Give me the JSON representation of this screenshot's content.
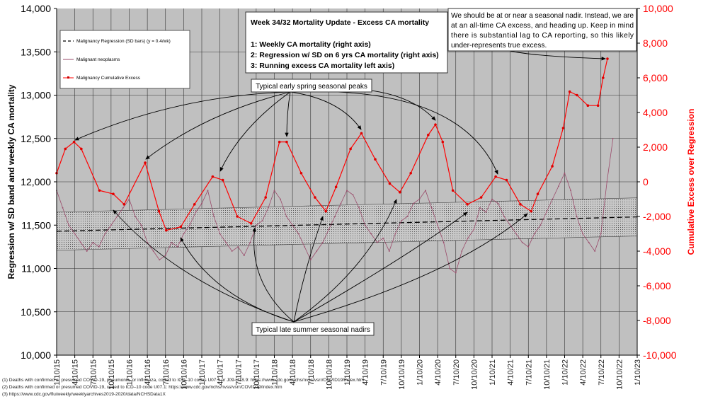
{
  "chart_data": {
    "type": "line",
    "title": "Week 34/32 Mortality Update - Excess CA mortality",
    "title_lines": [
      "1: Weekly CA mortality (right axis)",
      "2: Regression w/ SD on 6 yrs CA mortality (right axis)",
      "3: Running excess CA mortality left axis)"
    ],
    "ylabel_left": "Regression w/ SD band and weekly CA mortality",
    "ylabel_right": "Cumulative Excess over Regression",
    "ylim_left": [
      10000,
      14000
    ],
    "ylim_right": [
      -10000,
      10000
    ],
    "yticks_left": [
      "10,000",
      "10,500",
      "11,000",
      "11,500",
      "12,000",
      "12,500",
      "13,000",
      "13,500",
      "14,000"
    ],
    "yticks_right": [
      "-10,000",
      "-8,000",
      "-6,000",
      "-4,000",
      "-2,000",
      "0",
      "2,000",
      "4,000",
      "6,000",
      "8,000",
      "10,000"
    ],
    "xlim_years": [
      2015.03,
      2023.03
    ],
    "xticks": [
      "1/10/15",
      "4/10/15",
      "7/10/15",
      "10/10/15",
      "1/10/16",
      "4/10/16",
      "7/10/16",
      "10/10/16",
      "1/10/17",
      "4/10/17",
      "7/10/17",
      "10/10/17",
      "1/10/18",
      "4/10/18",
      "7/10/18",
      "10/10/18",
      "1/10/19",
      "4/10/19",
      "7/10/19",
      "10/10/19",
      "1/10/20",
      "4/10/20",
      "7/10/20",
      "10/10/20",
      "1/10/21",
      "4/10/21",
      "7/10/21",
      "10/10/21",
      "1/10/22",
      "4/10/22",
      "7/10/22",
      "10/10/22",
      "1/10/23"
    ],
    "grid": true,
    "legend_placement": "top-left",
    "legend": [
      "Malignancy Regression (SD bars) (y = 0.4/wk)",
      "Malignant neoplasms",
      "Malignancy Cumulative Excess"
    ],
    "series": [
      {
        "name": "Malignancy Regression (SD bars) (y = 0.4/wk)",
        "axis": "left",
        "color": "#000000",
        "x": [
          2015.03,
          2022.95
        ],
        "y": [
          11430,
          11595
        ],
        "sd": 220
      },
      {
        "name": "Malignant neoplasms",
        "axis": "left",
        "color": "#9a4a6a",
        "x_start": 2015.03,
        "x_step": 0.08333,
        "y": [
          11900,
          11700,
          11500,
          11400,
          11300,
          11200,
          11300,
          11250,
          11400,
          11500,
          11600,
          11700,
          11800,
          11600,
          11500,
          11300,
          11200,
          11100,
          11150,
          11300,
          11250,
          11400,
          11500,
          11650,
          11750,
          11900,
          11600,
          11400,
          11300,
          11200,
          11250,
          11150,
          11300,
          11500,
          11550,
          11700,
          11900,
          11800,
          11600,
          11500,
          11400,
          11250,
          11100,
          11200,
          11300,
          11450,
          11600,
          11750,
          11900,
          11850,
          11700,
          11500,
          11400,
          11300,
          11350,
          11200,
          11400,
          11550,
          11600,
          11750,
          11800,
          11900,
          11700,
          11500,
          11300,
          11000,
          10950,
          11200,
          11350,
          11450,
          11700,
          11650,
          11800,
          11750,
          11600,
          11500,
          11400,
          11300,
          11250,
          11400,
          11500,
          11650,
          11800,
          11950,
          12100,
          11900,
          11600,
          11400,
          11300,
          11200,
          11400,
          12000,
          12500
        ]
      },
      {
        "name": "Malignancy Cumulative Excess",
        "axis": "right",
        "color": "#ff0000",
        "x": [
          2015.03,
          2015.15,
          2015.27,
          2015.37,
          2015.62,
          2015.81,
          2015.96,
          2016.25,
          2016.44,
          2016.54,
          2016.74,
          2016.93,
          2017.18,
          2017.32,
          2017.52,
          2017.71,
          2017.91,
          2018.1,
          2018.2,
          2018.4,
          2018.59,
          2018.74,
          2018.88,
          2019.08,
          2019.23,
          2019.42,
          2019.62,
          2019.76,
          2019.91,
          2020.15,
          2020.25,
          2020.35,
          2020.49,
          2020.69,
          2020.88,
          2021.08,
          2021.23,
          2021.42,
          2021.57,
          2021.66,
          2021.86,
          2022.01,
          2022.1,
          2022.2,
          2022.35,
          2022.49,
          2022.56,
          2022.62
        ],
        "y": [
          500,
          1900,
          2300,
          1900,
          -500,
          -700,
          -1300,
          1100,
          -1700,
          -2800,
          -2600,
          -1300,
          300,
          100,
          -2000,
          -2400,
          -900,
          2300,
          2300,
          500,
          -900,
          -1700,
          -300,
          1900,
          2800,
          1300,
          -100,
          -600,
          500,
          2700,
          3300,
          2300,
          -500,
          -1300,
          -900,
          300,
          100,
          -1300,
          -1700,
          -700,
          900,
          3100,
          5200,
          5000,
          4400,
          4400,
          6000,
          7100
        ]
      }
    ],
    "annotations": {
      "peaks": "Typical early spring seasonal peaks",
      "nadirs": "Typical late summer seasonal nadirs",
      "note": [
        "We should be at or near a seasonal nadir. Instead, we are",
        "at an all-time CA excess, and heading up. Keep in mind",
        "there is substantial lag to CA reporting, so this likely",
        "under-represents true excess."
      ]
    }
  },
  "footnotes": [
    "(1) Deaths with confirmed or presumed COVID-19, pneumonia, or influenza, coded to ICD–10 codes U07.1 or J09–J18.9: https://www.cdc.gov/nchs/nvss/vsrr/COVID19/index.htm",
    "(2) Deaths with confirmed or presumed COVID-19, coded to ICD–10 code U07.1: https://www.cdc.gov/nchs/nvss/vsrr/COVID19/index.htm",
    "(3) https://www.cdc.gov/flu/weekly/weeklyarchives2019-2020/data/NCHSData1X"
  ]
}
